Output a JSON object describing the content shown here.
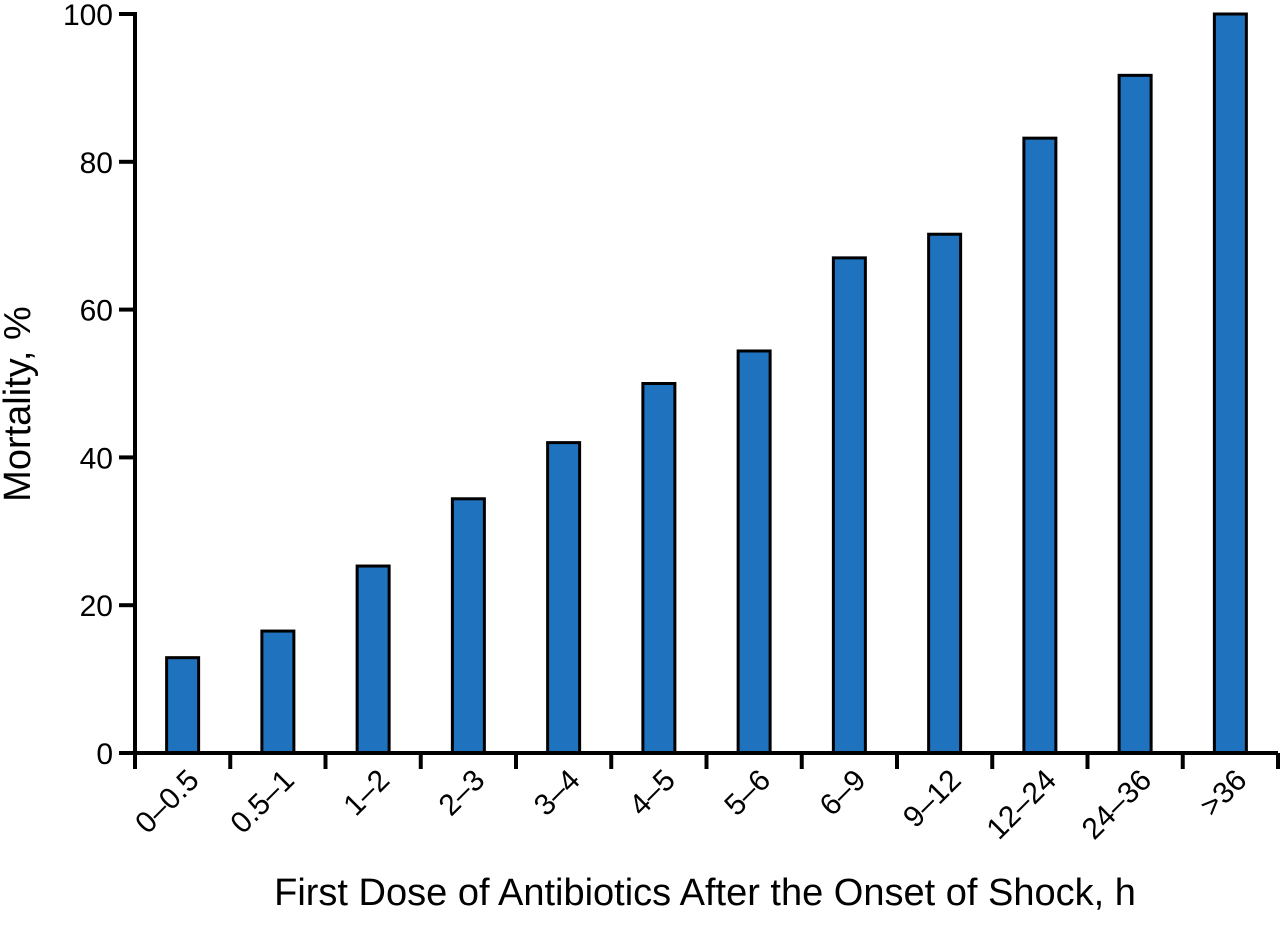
{
  "chart_data": {
    "type": "bar",
    "x_label": "First Dose of Antibiotics After the Onset of Shock, h",
    "y_label": "Mortality, %",
    "categories": [
      "0–0.5",
      "0.5–1",
      "1–2",
      "2–3",
      "3–4",
      "4–5",
      "5–6",
      "6–9",
      "9–12",
      "12–24",
      "24–36",
      ">36"
    ],
    "values": [
      12.9,
      16.5,
      25.3,
      34.4,
      42,
      50,
      54.4,
      67,
      70.2,
      83.2,
      91.7,
      100
    ],
    "color": "#1f72bd",
    "ylim": [
      0,
      100
    ],
    "yticks": [
      0,
      20,
      40,
      60,
      80,
      100
    ],
    "grid": false
  }
}
